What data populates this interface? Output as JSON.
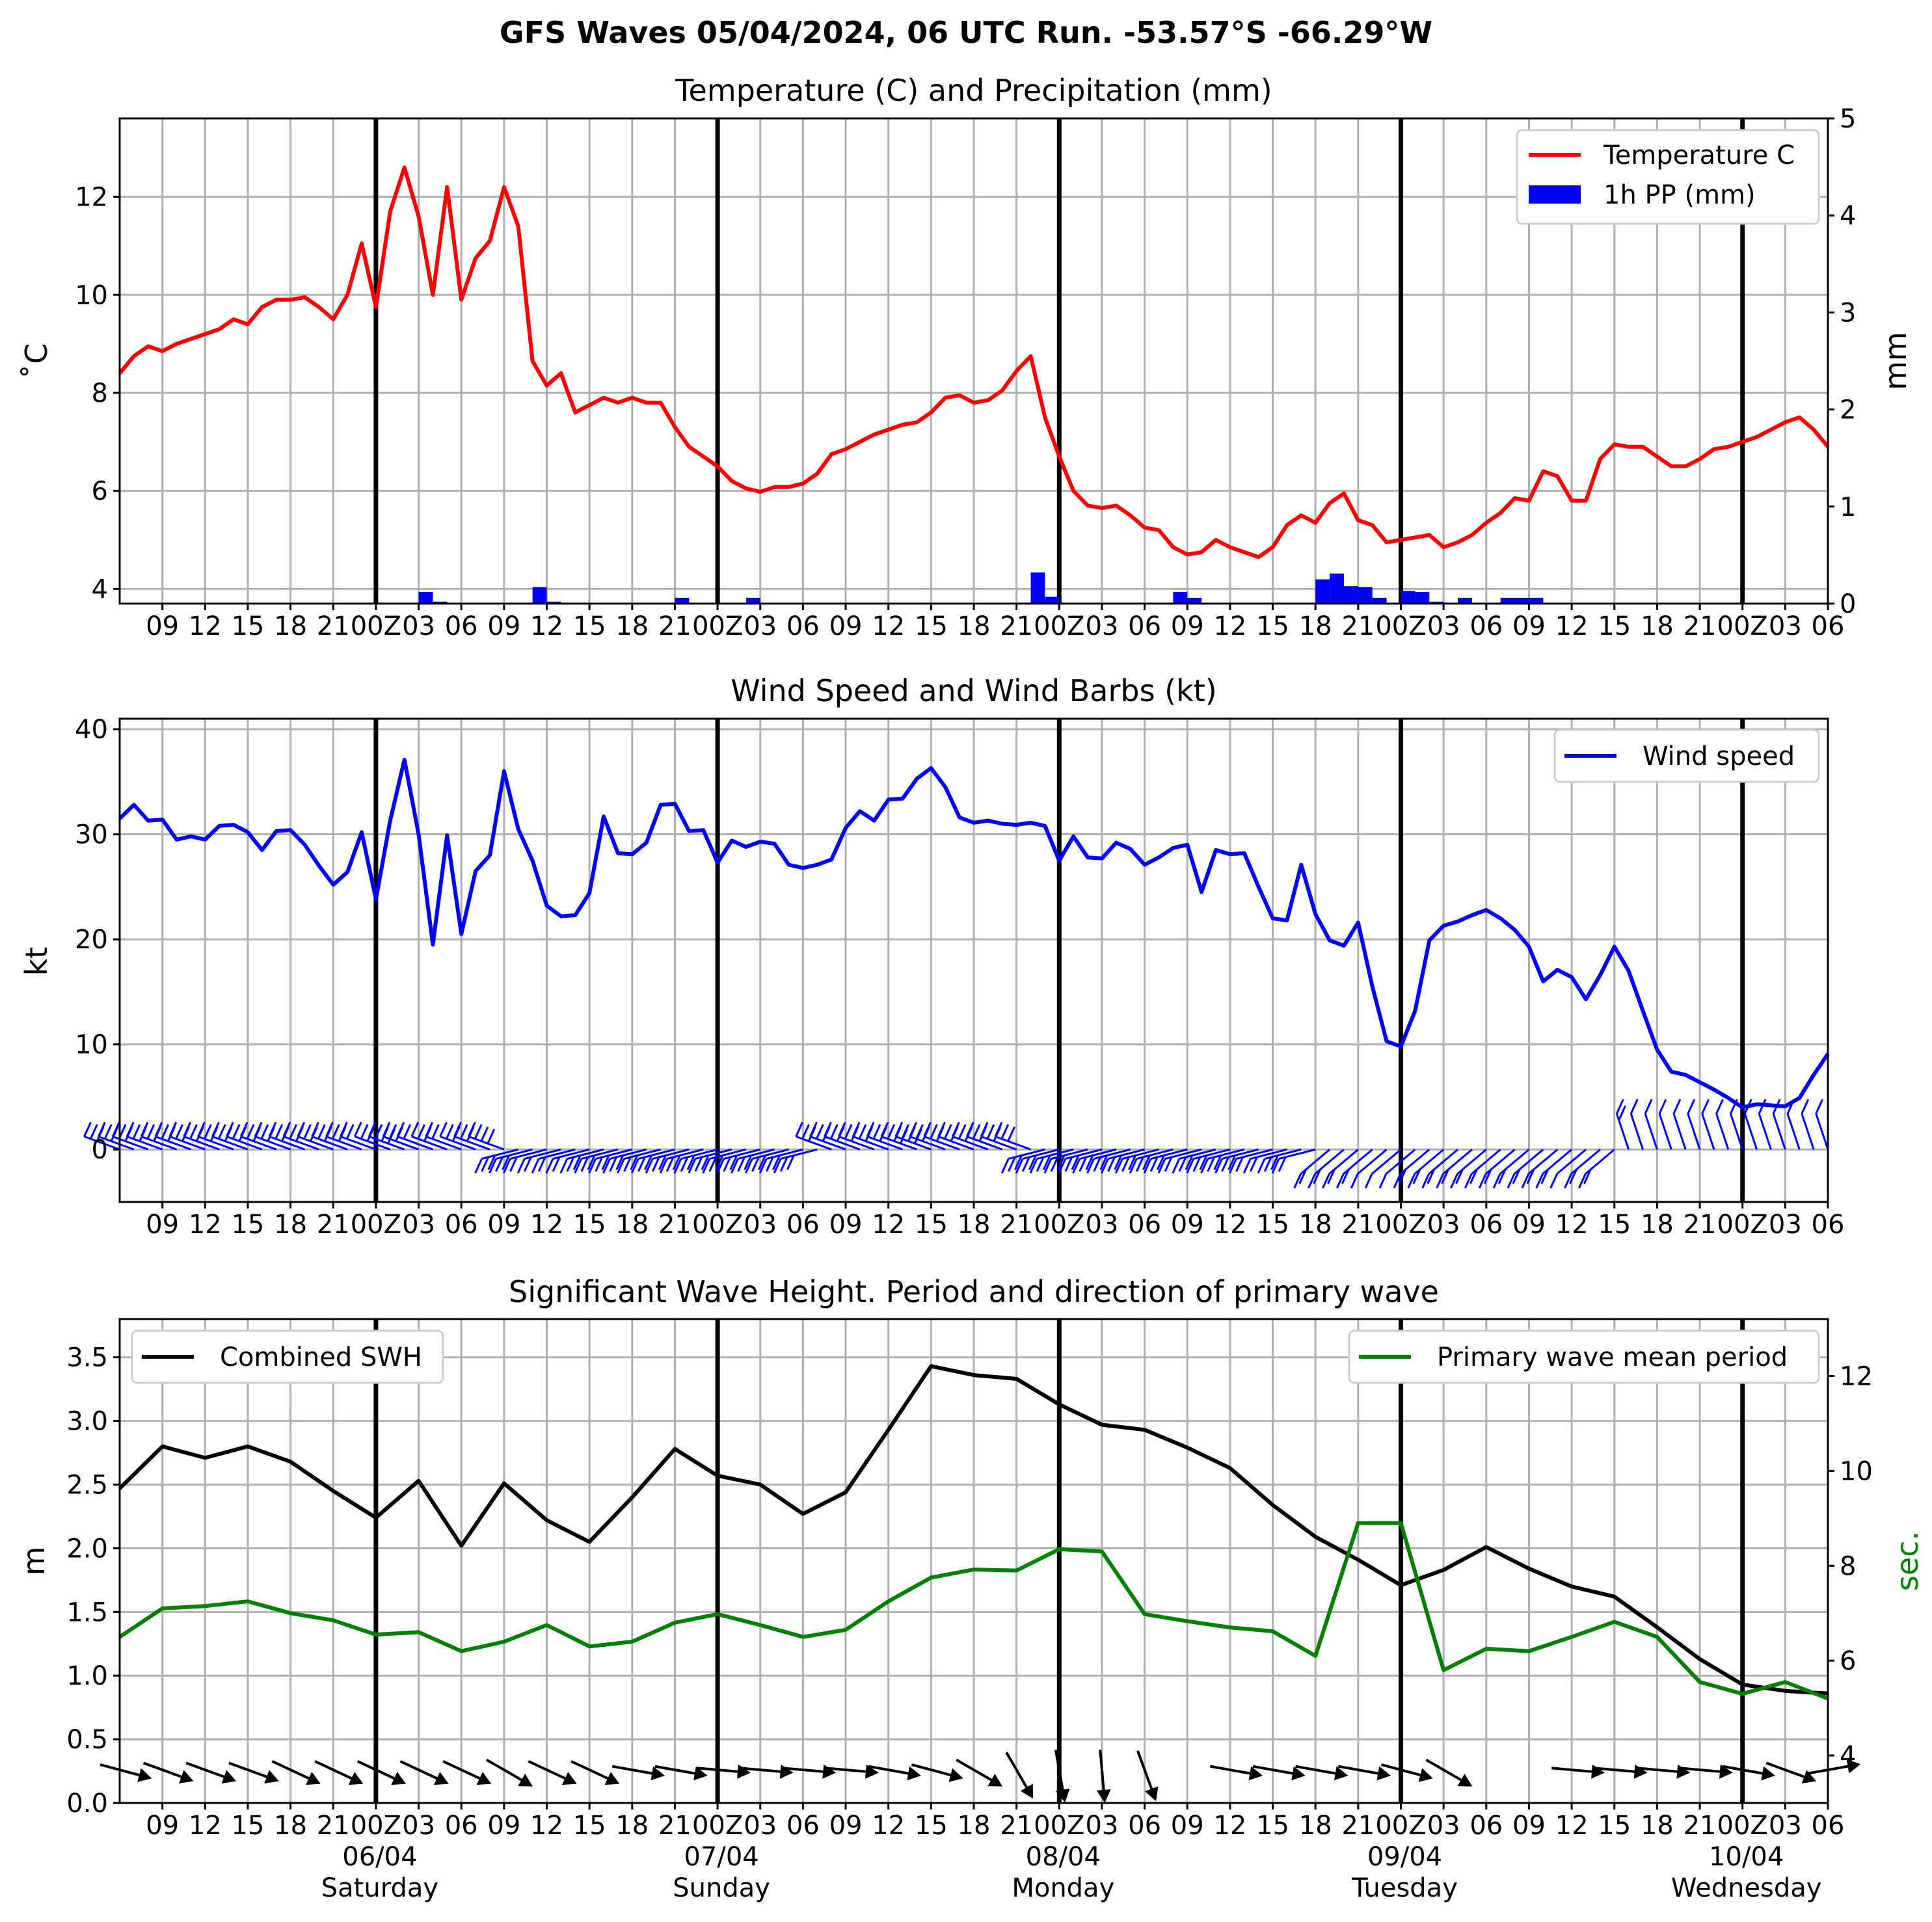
{
  "figure": {
    "suptitle": "GFS Waves 05/04/2024, 06 UTC Run. -53.57°S -66.29°W"
  },
  "colors": {
    "temperature": "#ff0000",
    "precip": "#0000ff",
    "wind": "#0000ff",
    "swh": "#000000",
    "period": "#008000",
    "grid": "#b0b0b0"
  },
  "time_axis": {
    "start": "2024-04-05 06 UTC",
    "end": "2024-04-10 06 UTC",
    "tick_labels": [
      "09",
      "12",
      "15",
      "18",
      "21",
      "00Z",
      "03",
      "06",
      "09",
      "12",
      "15",
      "18",
      "21",
      "00Z",
      "03",
      "06",
      "09",
      "12",
      "15",
      "18",
      "21",
      "00Z",
      "03",
      "06",
      "09",
      "12",
      "15",
      "18",
      "21",
      "00Z",
      "03",
      "06",
      "09",
      "12",
      "15",
      "18",
      "21",
      "00Z",
      "03",
      "06"
    ],
    "bottom_tick_labels": [
      "09",
      "12",
      "15",
      "18",
      "21",
      "00Z",
      "03",
      "06",
      "09",
      "12",
      "15",
      "18",
      "21",
      "00Z",
      "03",
      "06",
      "09",
      "12",
      "15",
      "18",
      "21",
      "00Z",
      "03",
      "06",
      "09",
      "12",
      "15",
      "18",
      "21",
      "00Z",
      "03",
      "06",
      "09",
      "12",
      "15",
      "18",
      "21",
      "00Z",
      "03",
      "06"
    ],
    "day_labels": [
      {
        "date": "06/04",
        "weekday": "Saturday"
      },
      {
        "date": "07/04",
        "weekday": "Sunday"
      },
      {
        "date": "08/04",
        "weekday": "Monday"
      },
      {
        "date": "09/04",
        "weekday": "Tuesday"
      },
      {
        "date": "10/04",
        "weekday": "Wednesday"
      }
    ]
  },
  "chart_data": [
    {
      "type": "line",
      "title": "Temperature (C) and Precipitation (mm)",
      "ylabel": "$^\\circ$C",
      "ylabel_display": "˚C",
      "y2label": "mm",
      "ylim": [
        3.7,
        13.6
      ],
      "yticks": [
        4,
        6,
        8,
        10,
        12
      ],
      "y2lim": [
        0,
        5
      ],
      "y2ticks": [
        0,
        1,
        2,
        3,
        4,
        5
      ],
      "legend": [
        "Temperature C",
        "1h PP (mm)"
      ],
      "legend_position": "upper right",
      "grid": true,
      "series": [
        {
          "name": "Temperature C",
          "x_hours_from_start": [
            0,
            1,
            2,
            3,
            4,
            5,
            6,
            7,
            8,
            9,
            10,
            11,
            12,
            13,
            14,
            15,
            16,
            17,
            18,
            19,
            20,
            21,
            22,
            23,
            24,
            25,
            26,
            27,
            28,
            29,
            30,
            31,
            32,
            33,
            34,
            35,
            36,
            37,
            38,
            39,
            40,
            41,
            42,
            43,
            44,
            45,
            46,
            47,
            48,
            49,
            50,
            51,
            52,
            53,
            54,
            55,
            56,
            57,
            58,
            59,
            60,
            61,
            62,
            63,
            64,
            65,
            66,
            67,
            68,
            69,
            70,
            71,
            72,
            73,
            74,
            75,
            76,
            77,
            78,
            79,
            80,
            81,
            82,
            83,
            84,
            85,
            86,
            87,
            88,
            89,
            90,
            91,
            92,
            93,
            94,
            95,
            96,
            97,
            98,
            99,
            100,
            101,
            102,
            103,
            104,
            105,
            106,
            107,
            108,
            109,
            110,
            111,
            112,
            113,
            114,
            115,
            116,
            117,
            118,
            119,
            120
          ],
          "values": [
            8.4,
            8.75,
            8.95,
            8.85,
            9.0,
            9.1,
            9.2,
            9.3,
            9.5,
            9.4,
            9.75,
            9.9,
            9.9,
            9.95,
            9.75,
            9.5,
            10.0,
            11.05,
            9.75,
            11.7,
            12.6,
            11.6,
            10.0,
            12.2,
            9.9,
            10.75,
            11.1,
            12.2,
            11.4,
            8.65,
            8.15,
            8.4,
            7.6,
            7.75,
            7.9,
            7.8,
            7.9,
            7.8,
            7.8,
            7.3,
            6.9,
            6.7,
            6.5,
            6.2,
            6.05,
            5.98,
            6.08,
            6.08,
            6.15,
            6.35,
            6.75,
            6.85,
            7.0,
            7.15,
            7.25,
            7.35,
            7.4,
            7.6,
            7.9,
            7.95,
            7.8,
            7.85,
            8.05,
            8.45,
            8.75,
            7.5,
            6.7,
            6.0,
            5.7,
            5.65,
            5.7,
            5.5,
            5.25,
            5.2,
            4.85,
            4.7,
            4.75,
            5.0,
            4.85,
            4.75,
            4.65,
            4.85,
            5.3,
            5.5,
            5.35,
            5.75,
            5.95,
            5.4,
            5.3,
            4.95,
            5.0,
            5.05,
            5.1,
            4.85,
            4.95,
            5.1,
            5.35,
            5.55,
            5.85,
            5.8,
            6.4,
            6.3,
            5.8,
            5.8,
            6.65,
            6.95,
            6.9,
            6.9,
            6.7,
            6.5,
            6.5,
            6.65,
            6.85,
            6.9,
            7.0,
            7.1,
            7.25,
            7.4,
            7.5,
            7.25,
            6.9
          ]
        },
        {
          "name": "1h PP (mm)",
          "type": "bar",
          "x_hours_from_start": [
            21.5,
            22.5,
            29.5,
            30.5,
            39.5,
            44.5,
            64.5,
            65.5,
            74.5,
            75.5,
            84.5,
            85.5,
            86.5,
            87.5,
            88.5,
            90.5,
            91.5,
            92.5,
            94.5,
            97.5,
            98.5,
            99.5
          ],
          "values": [
            0.12,
            0.02,
            0.17,
            0.02,
            0.06,
            0.06,
            0.32,
            0.07,
            0.12,
            0.06,
            0.25,
            0.31,
            0.18,
            0.17,
            0.06,
            0.13,
            0.12,
            0.02,
            0.06,
            0.06,
            0.06,
            0.06
          ]
        }
      ]
    },
    {
      "type": "line",
      "title": "Wind Speed and Wind Barbs (kt)",
      "ylabel": "kt",
      "ylim": [
        -5,
        41
      ],
      "yticks": [
        0,
        10,
        20,
        30,
        40
      ],
      "legend": [
        "Wind speed"
      ],
      "legend_position": "upper right",
      "grid": true,
      "series": [
        {
          "name": "Wind speed",
          "x_hours_from_start": [
            0,
            1,
            2,
            3,
            4,
            5,
            6,
            7,
            8,
            9,
            10,
            11,
            12,
            13,
            14,
            15,
            16,
            17,
            18,
            19,
            20,
            21,
            22,
            23,
            24,
            25,
            26,
            27,
            28,
            29,
            30,
            31,
            32,
            33,
            34,
            35,
            36,
            37,
            38,
            39,
            40,
            41,
            42,
            43,
            44,
            45,
            46,
            47,
            48,
            49,
            50,
            51,
            52,
            53,
            54,
            55,
            56,
            57,
            58,
            59,
            60,
            61,
            62,
            63,
            64,
            65,
            66,
            67,
            68,
            69,
            70,
            71,
            72,
            73,
            74,
            75,
            76,
            77,
            78,
            79,
            80,
            81,
            82,
            83,
            84,
            85,
            86,
            87,
            88,
            89,
            90,
            91,
            92,
            93,
            94,
            95,
            96,
            97,
            98,
            99,
            100,
            101,
            102,
            103,
            104,
            105,
            106,
            107,
            108,
            109,
            110,
            111,
            112,
            113,
            114,
            115,
            116,
            117,
            118,
            119,
            120
          ],
          "values": [
            31.5,
            32.8,
            31.3,
            31.4,
            29.5,
            29.8,
            29.5,
            30.8,
            30.9,
            30.2,
            28.5,
            30.3,
            30.4,
            29.0,
            27.0,
            25.2,
            26.4,
            30.2,
            23.8,
            31.3,
            37.1,
            30.0,
            19.5,
            29.9,
            20.5,
            26.5,
            28.0,
            36.0,
            30.5,
            27.5,
            23.2,
            22.2,
            22.3,
            24.4,
            31.7,
            28.2,
            28.1,
            29.2,
            32.8,
            32.9,
            30.3,
            30.4,
            27.3,
            29.4,
            28.8,
            29.3,
            29.1,
            27.1,
            26.8,
            27.1,
            27.6,
            30.6,
            32.2,
            31.3,
            33.3,
            33.4,
            35.3,
            36.3,
            34.5,
            31.6,
            31.1,
            31.3,
            31.0,
            30.9,
            31.1,
            30.8,
            27.5,
            29.8,
            27.8,
            27.7,
            29.2,
            28.6,
            27.1,
            27.8,
            28.7,
            29.0,
            24.5,
            28.5,
            28.1,
            28.2,
            25.0,
            22.0,
            21.8,
            27.1,
            22.4,
            19.9,
            19.4,
            21.6,
            15.5,
            10.3,
            9.8,
            13.2,
            19.9,
            21.3,
            21.7,
            22.3,
            22.8,
            22.0,
            20.9,
            19.3,
            16.0,
            17.1,
            16.4,
            14.3,
            16.6,
            19.3,
            17.0,
            13.2,
            9.5,
            7.4,
            7.1,
            6.4,
            5.7,
            4.9,
            4.0,
            4.3,
            4.2,
            4.1,
            4.9,
            7.1,
            9.1,
            10.2
          ]
        }
      ]
    },
    {
      "type": "line",
      "title": "Significant Wave Height. Period and direction of primary wave",
      "ylabel": "m",
      "y2label": "sec.",
      "ylim": [
        0.0,
        3.8
      ],
      "yticks": [
        0.0,
        0.5,
        1.0,
        1.5,
        2.0,
        2.5,
        3.0,
        3.5
      ],
      "y2lim": [
        3.0,
        13.2
      ],
      "y2ticks": [
        4,
        6,
        8,
        10,
        12
      ],
      "legend": [
        "Combined SWH",
        "Primary wave mean period"
      ],
      "grid": true,
      "series": [
        {
          "name": "Combined SWH",
          "x_hours_from_start": [
            0,
            3,
            6,
            9,
            12,
            15,
            18,
            21,
            24,
            27,
            30,
            33,
            36,
            39,
            42,
            45,
            48,
            51,
            54,
            57,
            60,
            63,
            66,
            69,
            72,
            75,
            78,
            81,
            84,
            87,
            90,
            93,
            96,
            99,
            102,
            105,
            108,
            111,
            114,
            117,
            120
          ],
          "values": [
            2.47,
            2.8,
            2.71,
            2.8,
            2.68,
            2.45,
            2.24,
            2.53,
            2.02,
            2.51,
            2.22,
            2.05,
            2.4,
            2.78,
            2.57,
            2.5,
            2.27,
            2.44,
            2.93,
            3.43,
            3.36,
            3.33,
            3.13,
            2.97,
            2.93,
            2.79,
            2.63,
            2.34,
            2.09,
            1.91,
            1.71,
            1.83,
            2.01,
            1.84,
            1.7,
            1.62,
            1.38,
            1.13,
            0.93,
            0.88,
            0.86
          ]
        },
        {
          "name": "Primary wave mean period",
          "axis": "right",
          "x_hours_from_start": [
            0,
            3,
            6,
            9,
            12,
            15,
            18,
            21,
            24,
            27,
            30,
            33,
            36,
            39,
            42,
            45,
            48,
            51,
            54,
            57,
            60,
            63,
            66,
            69,
            72,
            75,
            78,
            81,
            84,
            87,
            90,
            93,
            96,
            99,
            102,
            105,
            108,
            111,
            114,
            117,
            120
          ],
          "values": [
            6.5,
            7.1,
            7.15,
            7.25,
            7.0,
            6.85,
            6.55,
            6.6,
            6.2,
            6.4,
            6.75,
            6.3,
            6.4,
            6.8,
            6.98,
            6.75,
            6.5,
            6.65,
            7.25,
            7.75,
            7.92,
            7.9,
            8.35,
            8.3,
            6.98,
            6.83,
            6.7,
            6.62,
            6.1,
            8.9,
            8.9,
            5.8,
            6.25,
            6.2,
            6.5,
            6.82,
            6.5,
            5.55,
            5.3,
            5.55,
            5.2
          ]
        },
        {
          "name": "Primary wave direction",
          "type": "arrows",
          "x_hours_from_start": [
            0,
            3,
            6,
            9,
            12,
            15,
            18,
            21,
            24,
            27,
            30,
            33,
            36,
            39,
            42,
            45,
            48,
            51,
            54,
            57,
            60,
            63,
            66,
            69,
            72,
            75,
            78,
            81,
            84,
            87,
            90,
            93,
            96,
            99,
            102,
            105,
            108,
            111,
            114,
            117,
            120
          ],
          "heading_deg": [
            105,
            110,
            110,
            110,
            115,
            115,
            115,
            115,
            115,
            120,
            115,
            115,
            100,
            100,
            95,
            95,
            95,
            95,
            100,
            105,
            120,
            150,
            170,
            175,
            160,
            null,
            100,
            100,
            100,
            100,
            105,
            120,
            null,
            null,
            95,
            95,
            95,
            95,
            100,
            110,
            80
          ]
        }
      ]
    }
  ]
}
